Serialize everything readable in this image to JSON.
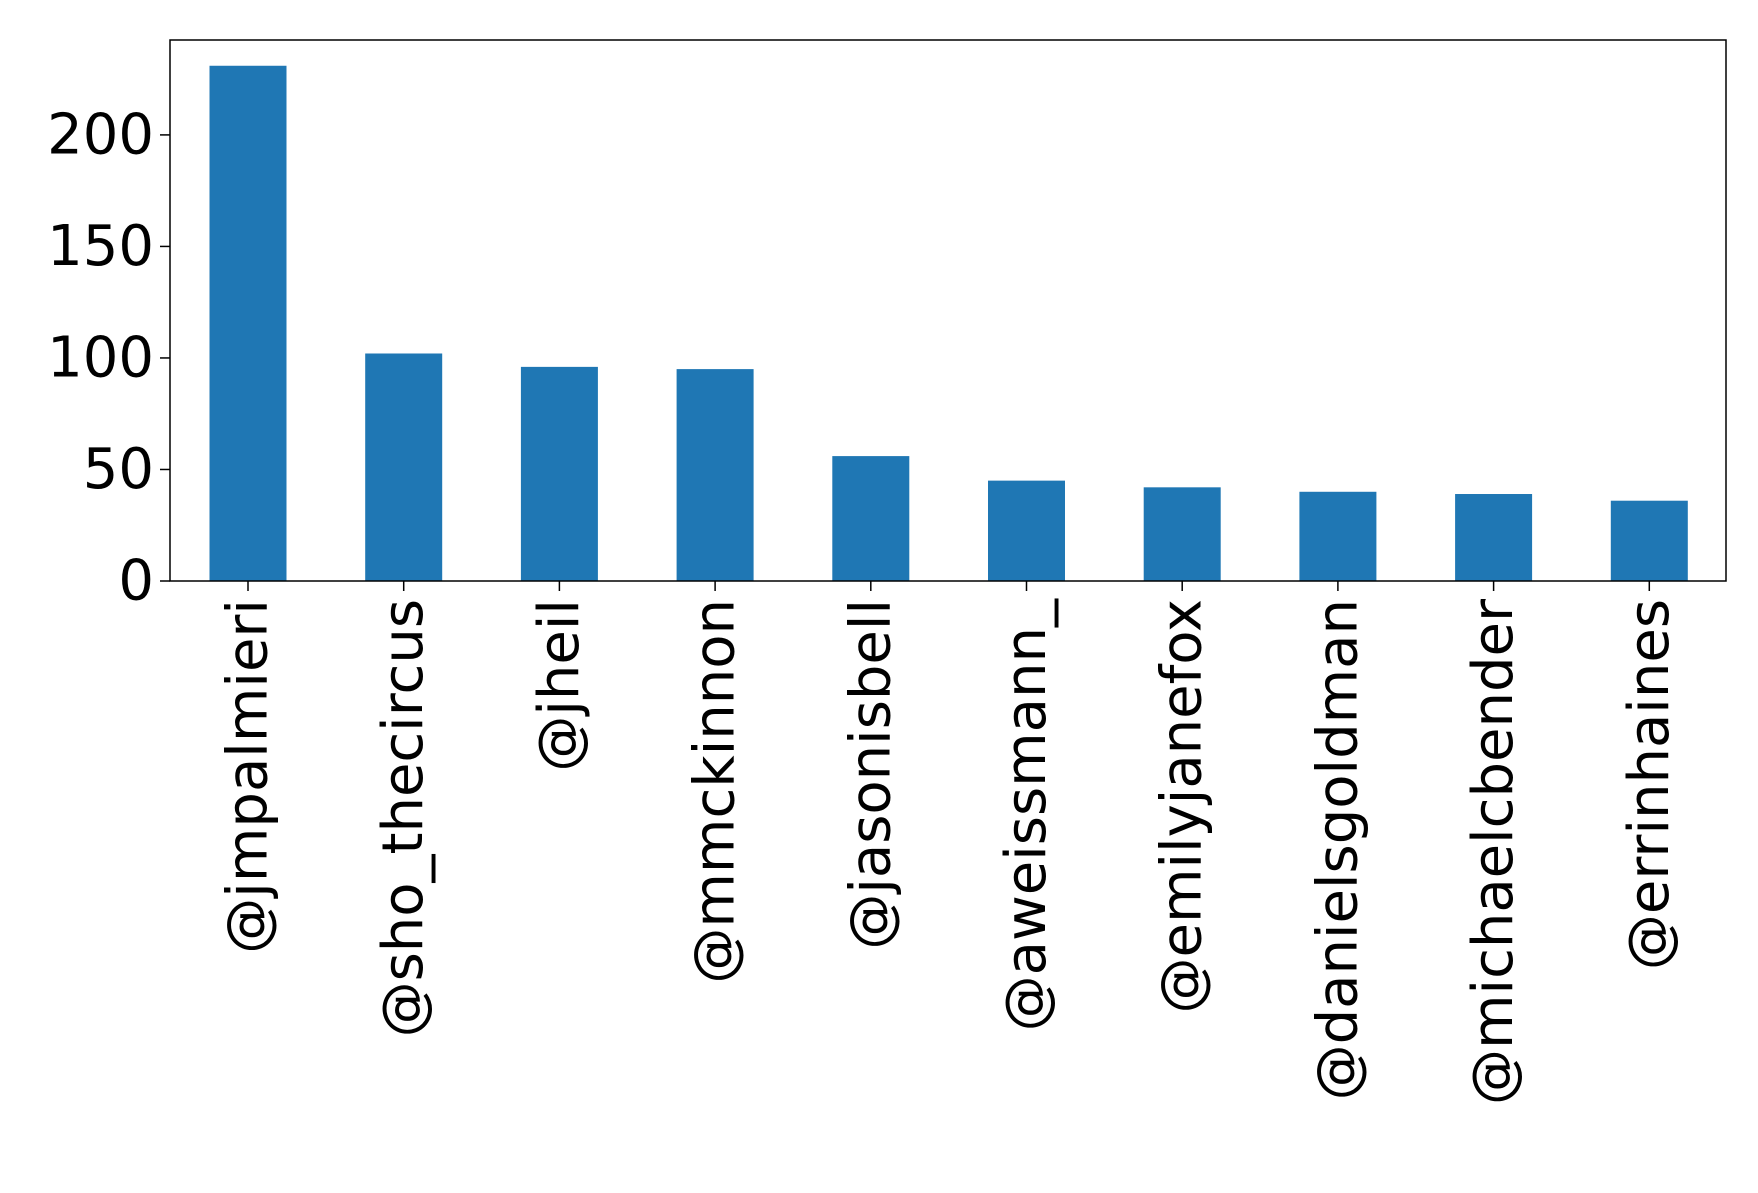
{
  "chart_data": {
    "type": "bar",
    "categories": [
      "@jmpalmieri",
      "@sho_thecircus",
      "@jheil",
      "@mmckinnon",
      "@jasonisbell",
      "@aweissmann_",
      "@emilyjanefox",
      "@danielsgoldman",
      "@michaelcbender",
      "@errinhaines"
    ],
    "values": [
      231,
      102,
      96,
      95,
      56,
      45,
      42,
      40,
      39,
      36
    ],
    "title": "",
    "xlabel": "",
    "ylabel": "",
    "ylim": [
      0,
      242.55
    ],
    "yticks": [
      0,
      50,
      100,
      150,
      200
    ],
    "ytick_labels": [
      "0",
      "50",
      "100",
      "150",
      "200"
    ],
    "bar_color": "#1f77b4",
    "grid": false,
    "legend": "none"
  }
}
